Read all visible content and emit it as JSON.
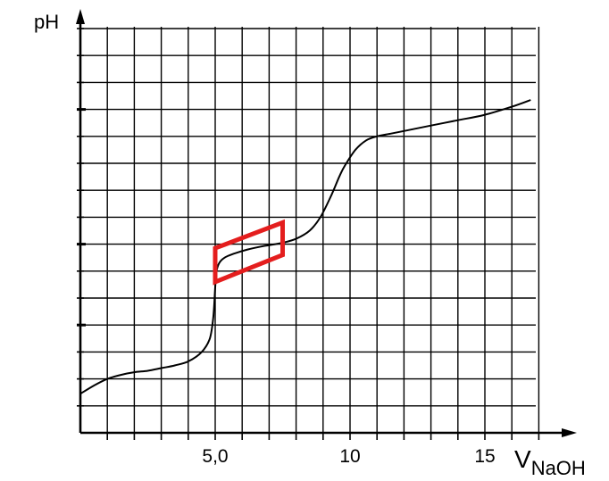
{
  "chart_data": {
    "type": "line",
    "ylabel": "pH",
    "xlabel_main": "V",
    "xlabel_sub": "NaOH",
    "x_tick_labels": [
      {
        "x": 5,
        "label": "5,0"
      },
      {
        "x": 10,
        "label": "10"
      },
      {
        "x": 15,
        "label": "15"
      }
    ],
    "xlim": [
      0,
      17
    ],
    "y_grid_units": [
      0,
      15
    ],
    "grid": true,
    "series": [
      {
        "line_color": "#000000",
        "points": [
          [
            0.0,
            1.45
          ],
          [
            0.5,
            1.75
          ],
          [
            1.0,
            2.0
          ],
          [
            1.5,
            2.15
          ],
          [
            2.0,
            2.25
          ],
          [
            2.5,
            2.3
          ],
          [
            3.0,
            2.4
          ],
          [
            3.5,
            2.5
          ],
          [
            4.0,
            2.65
          ],
          [
            4.5,
            3.0
          ],
          [
            4.8,
            3.5
          ],
          [
            4.93,
            4.3
          ],
          [
            5.0,
            5.4
          ],
          [
            5.05,
            6.0
          ],
          [
            5.15,
            6.3
          ],
          [
            5.35,
            6.5
          ],
          [
            5.7,
            6.65
          ],
          [
            6.2,
            6.8
          ],
          [
            6.8,
            6.93
          ],
          [
            7.5,
            7.05
          ],
          [
            8.0,
            7.2
          ],
          [
            8.5,
            7.5
          ],
          [
            8.9,
            8.0
          ],
          [
            9.3,
            8.8
          ],
          [
            9.6,
            9.5
          ],
          [
            9.8,
            9.9
          ],
          [
            10.2,
            10.5
          ],
          [
            10.6,
            10.85
          ],
          [
            11.0,
            11.0
          ],
          [
            11.5,
            11.1
          ],
          [
            12.0,
            11.2
          ],
          [
            13.0,
            11.4
          ],
          [
            14.0,
            11.6
          ],
          [
            15.0,
            11.8
          ],
          [
            16.0,
            12.1
          ],
          [
            16.7,
            12.35
          ]
        ]
      }
    ],
    "highlight": {
      "shape": "parallelogram",
      "color": "#e41e1e",
      "corners": [
        [
          5.0,
          5.6
        ],
        [
          7.5,
          6.6
        ],
        [
          7.5,
          7.8
        ],
        [
          5.0,
          6.85
        ]
      ]
    }
  }
}
